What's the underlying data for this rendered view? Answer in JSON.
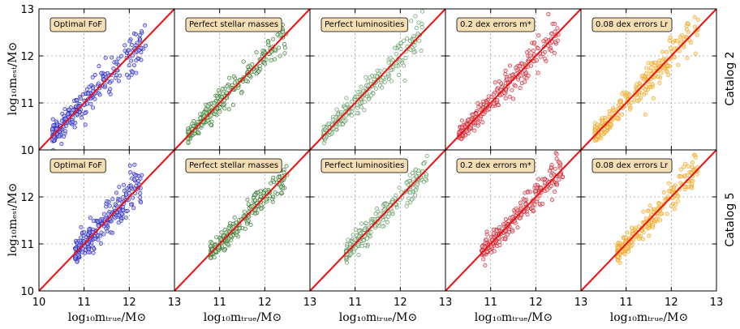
{
  "figure": {
    "x_label": "log₁₀mₜᵣᵤₑ/M⊙",
    "y_label": "log₁₀mₑₛₜ/M⊙",
    "row_labels": [
      "Catalog 2",
      "Catalog 5"
    ],
    "panel_labels": [
      "Optimal FoF",
      "Perfect stellar masses",
      "Perfect luminosities",
      "0.2 dex errors m*",
      "0.08 dex errors Lr"
    ],
    "x_ticks": [
      "10",
      "11",
      "12",
      "13"
    ],
    "y_ticks": [
      "10",
      "11",
      "12",
      "13"
    ],
    "colors": {
      "optimal_fof": "#1f1fb4",
      "perfect_stellar_masses": "#2e6b2e",
      "perfect_luminosities": "#5c8f5c",
      "dex_0_2_mstar": "#c0202c",
      "dex_0_08_lr": "#e8a020",
      "identity_line": "#ee1111",
      "label_box_fill": "#f5deb3"
    }
  },
  "chart_data": {
    "type": "scatter",
    "layout": "2 rows x 5 columns",
    "xlim": [
      10,
      13
    ],
    "ylim": [
      10,
      13
    ],
    "grid": true,
    "reference_line": "y = x",
    "panels": [
      {
        "row": "Catalog 2",
        "label": "Optimal FoF",
        "x_range": [
          10.3,
          12.4
        ],
        "y_range": [
          10.3,
          12.5
        ]
      },
      {
        "row": "Catalog 2",
        "label": "Perfect stellar masses",
        "x_range": [
          10.3,
          12.5
        ],
        "y_range": [
          10.3,
          12.5
        ]
      },
      {
        "row": "Catalog 2",
        "label": "Perfect luminosities",
        "x_range": [
          10.3,
          12.5
        ],
        "y_range": [
          10.3,
          12.5
        ]
      },
      {
        "row": "Catalog 2",
        "label": "0.2 dex errors m*",
        "x_range": [
          10.3,
          12.5
        ],
        "y_range": [
          10.3,
          12.5
        ]
      },
      {
        "row": "Catalog 2",
        "label": "0.08 dex errors Lr",
        "x_range": [
          10.3,
          12.6
        ],
        "y_range": [
          10.3,
          12.6
        ]
      },
      {
        "row": "Catalog 5",
        "label": "Optimal FoF",
        "x_range": [
          10.8,
          12.3
        ],
        "y_range": [
          10.8,
          12.4
        ]
      },
      {
        "row": "Catalog 5",
        "label": "Perfect stellar masses",
        "x_range": [
          10.8,
          12.5
        ],
        "y_range": [
          10.8,
          12.5
        ]
      },
      {
        "row": "Catalog 5",
        "label": "Perfect luminosities",
        "x_range": [
          10.8,
          12.6
        ],
        "y_range": [
          10.8,
          12.6
        ]
      },
      {
        "row": "Catalog 5",
        "label": "0.2 dex errors m*",
        "x_range": [
          10.8,
          12.6
        ],
        "y_range": [
          10.8,
          12.6
        ]
      },
      {
        "row": "Catalog 5",
        "label": "0.08 dex errors Lr",
        "x_range": [
          10.8,
          12.6
        ],
        "y_range": [
          10.8,
          12.6
        ]
      }
    ]
  }
}
